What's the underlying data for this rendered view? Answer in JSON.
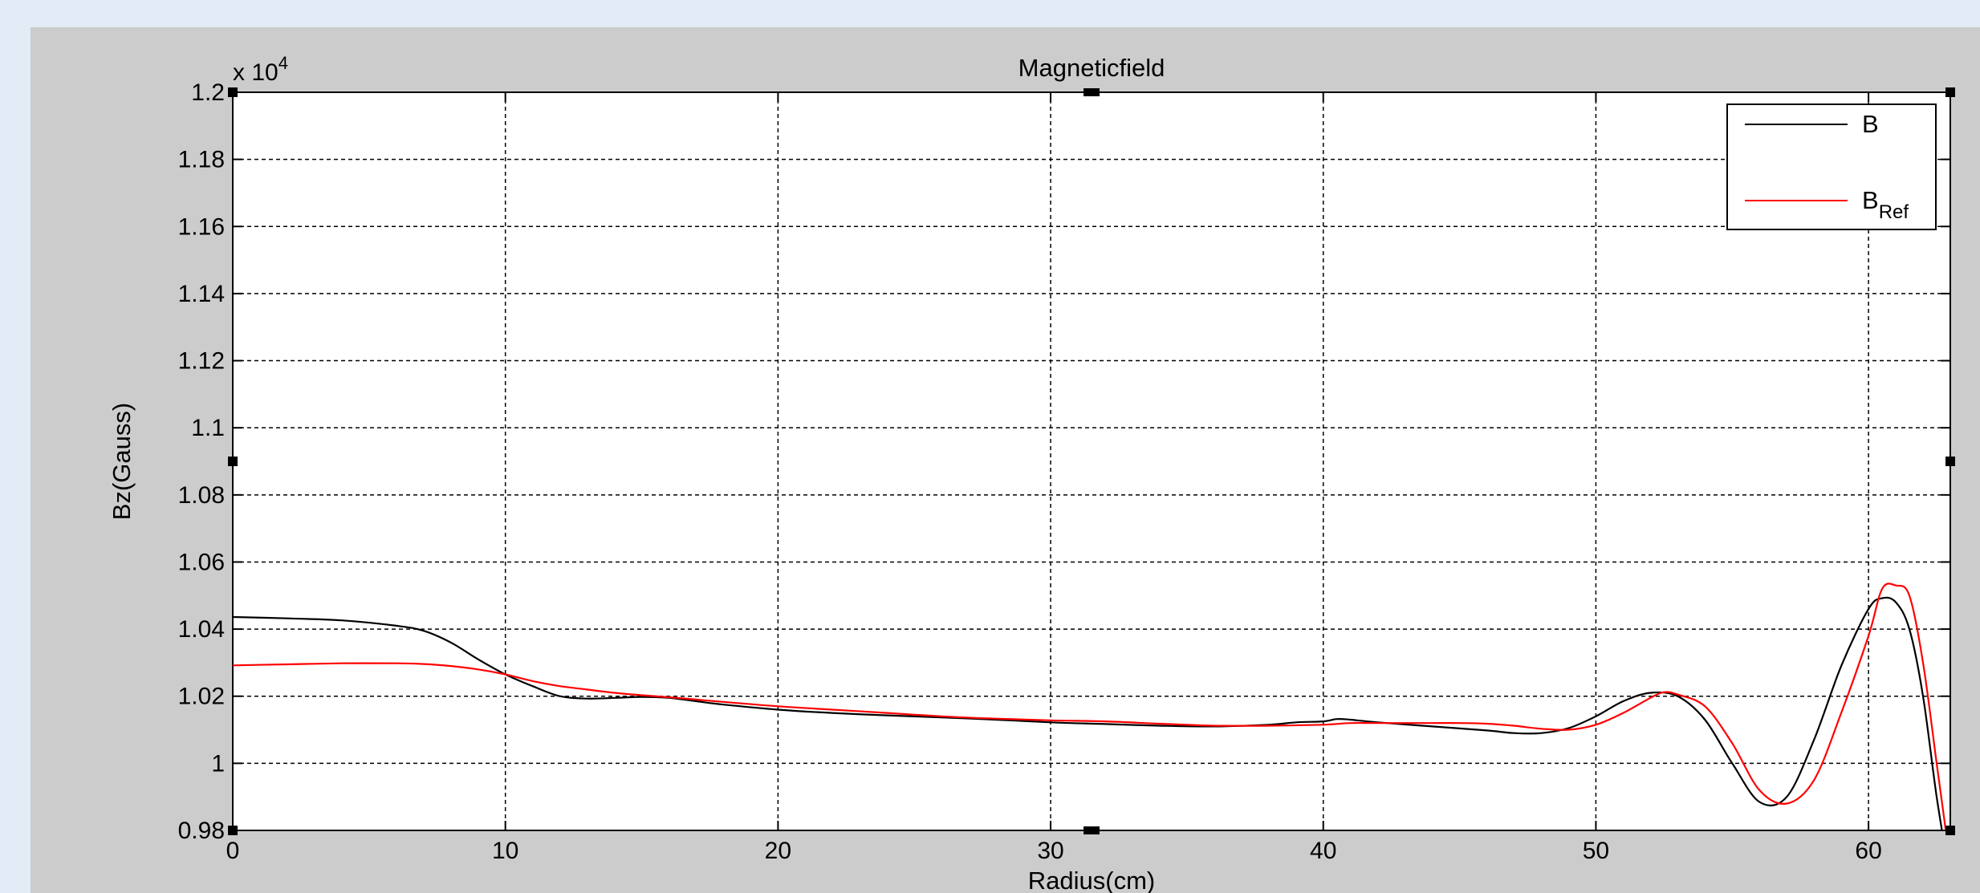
{
  "chart_data": {
    "type": "line",
    "title": "Magneticfield",
    "xlabel": "Radius(cm)",
    "ylabel": "Bz(Gauss)",
    "y_exponent_label": "x 10",
    "y_exponent_power": "4",
    "xlim": [
      0,
      63
    ],
    "ylim": [
      0.98,
      1.2
    ],
    "x_ticks": [
      0,
      10,
      20,
      30,
      40,
      50,
      60
    ],
    "x_tick_labels": [
      "0",
      "10",
      "20",
      "30",
      "40",
      "50",
      "60"
    ],
    "y_ticks": [
      0.98,
      1.0,
      1.02,
      1.04,
      1.06,
      1.08,
      1.1,
      1.12,
      1.14,
      1.16,
      1.18,
      1.2
    ],
    "y_tick_labels": [
      "0.98",
      "1",
      "1.02",
      "1.04",
      "1.06",
      "1.08",
      "1.1",
      "1.12",
      "1.14",
      "1.16",
      "1.18",
      "1.2"
    ],
    "grid": true,
    "legend_position": "top-right",
    "colors": {
      "B": "#000000",
      "B_Ref": "#ff0000",
      "background": "#cccccc",
      "page": "#e3ebf6"
    },
    "series": [
      {
        "name": "B",
        "legend_label": "B",
        "color": "#000000",
        "x": [
          0,
          2,
          4,
          6,
          7,
          8,
          9,
          10,
          11,
          12,
          13,
          14,
          15,
          16,
          17,
          18,
          20,
          22,
          24,
          26,
          28,
          30,
          32,
          34,
          36,
          38,
          39,
          40,
          40.5,
          41,
          42,
          44,
          46,
          47,
          48,
          49,
          50,
          51,
          52,
          53,
          54,
          55,
          56,
          57,
          58,
          59,
          60,
          60.5,
          61,
          61.5,
          62,
          62.5,
          63
        ],
        "y": [
          1.0436,
          1.0432,
          1.0426,
          1.041,
          1.0395,
          1.036,
          1.031,
          1.0265,
          1.023,
          1.02,
          1.0193,
          1.0195,
          1.0198,
          1.0195,
          1.0185,
          1.0175,
          1.016,
          1.015,
          1.0143,
          1.0137,
          1.013,
          1.0122,
          1.0117,
          1.0112,
          1.011,
          1.0115,
          1.0122,
          1.0125,
          1.0132,
          1.013,
          1.0122,
          1.011,
          1.0098,
          1.009,
          1.009,
          1.0105,
          1.014,
          1.0185,
          1.021,
          1.02,
          1.013,
          1.0,
          0.9885,
          0.99,
          1.007,
          1.029,
          1.046,
          1.0492,
          1.048,
          1.04,
          1.02,
          0.99,
          0.965
        ]
      },
      {
        "name": "B_Ref",
        "legend_label": "B",
        "legend_subscript": "Ref",
        "color": "#ff0000",
        "x": [
          0,
          2,
          4,
          6,
          7,
          8,
          9,
          10,
          11,
          12,
          13,
          14,
          15,
          16,
          17,
          18,
          20,
          22,
          24,
          26,
          28,
          30,
          32,
          34,
          36,
          38,
          40,
          41,
          42,
          44,
          45,
          46,
          47,
          48,
          49,
          50,
          51,
          52,
          52.5,
          53,
          54,
          55,
          56,
          57,
          58,
          59,
          60,
          60.5,
          61,
          61.5,
          62,
          62.5,
          63
        ],
        "y": [
          1.0292,
          1.0295,
          1.0298,
          1.0298,
          1.0296,
          1.029,
          1.028,
          1.0265,
          1.0245,
          1.023,
          1.022,
          1.021,
          1.0203,
          1.0197,
          1.019,
          1.0183,
          1.017,
          1.016,
          1.015,
          1.014,
          1.0133,
          1.0128,
          1.0125,
          1.0118,
          1.0112,
          1.0112,
          1.0115,
          1.012,
          1.012,
          1.012,
          1.012,
          1.0118,
          1.0112,
          1.0103,
          1.01,
          1.0115,
          1.015,
          1.0195,
          1.0212,
          1.0205,
          1.017,
          1.006,
          0.992,
          0.988,
          0.995,
          1.015,
          1.038,
          1.052,
          1.053,
          1.05,
          1.03,
          1.0,
          0.97
        ]
      }
    ]
  }
}
